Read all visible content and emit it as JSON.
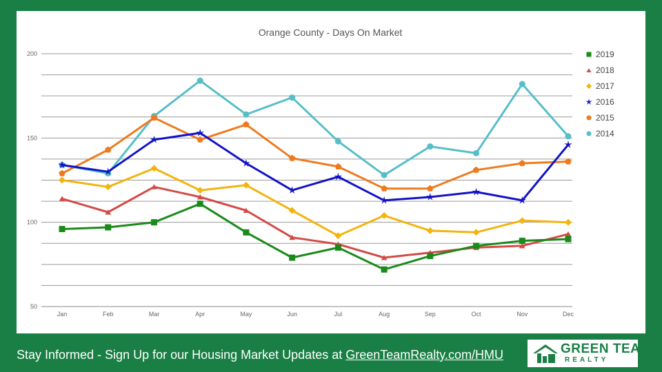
{
  "chart_data": {
    "type": "line",
    "title": "Orange County - Days On Market",
    "xlabel": "",
    "ylabel": "",
    "ylim": [
      50,
      200
    ],
    "y_ticks": [
      50,
      100,
      150,
      200
    ],
    "grid": true,
    "legend_position": "right",
    "categories": [
      "Jan",
      "Feb",
      "Mar",
      "Apr",
      "May",
      "Jun",
      "Jul",
      "Aug",
      "Sep",
      "Oct",
      "Nov",
      "Dec"
    ],
    "series": [
      {
        "name": "2019",
        "color": "#1a8a1a",
        "marker": "square",
        "values": [
          96,
          97,
          100,
          111,
          94,
          79,
          85,
          72,
          80,
          86,
          89,
          90
        ]
      },
      {
        "name": "2018",
        "color": "#d24b47",
        "marker": "triangle",
        "values": [
          114,
          106,
          121,
          115,
          107,
          91,
          87,
          79,
          82,
          85,
          86,
          93
        ]
      },
      {
        "name": "2017",
        "color": "#f2b40f",
        "marker": "diamond",
        "values": [
          125,
          121,
          132,
          119,
          122,
          107,
          92,
          104,
          95,
          94,
          101,
          100
        ]
      },
      {
        "name": "2016",
        "color": "#1212c8",
        "marker": "star",
        "values": [
          134,
          130,
          149,
          153,
          135,
          119,
          127,
          113,
          115,
          118,
          113,
          146
        ]
      },
      {
        "name": "2015",
        "color": "#ee7a1e",
        "marker": "pentagon",
        "values": [
          129,
          143,
          162,
          149,
          158,
          138,
          133,
          120,
          120,
          131,
          135,
          136
        ]
      },
      {
        "name": "2014",
        "color": "#56bec8",
        "marker": "circle",
        "values": [
          134,
          129,
          163,
          184,
          164,
          174,
          148,
          128,
          145,
          141,
          182,
          151
        ]
      }
    ]
  },
  "footer": {
    "text": "Stay Informed - Sign Up for our Housing Market Updates at ",
    "link": "GreenTeamRealty.com/HMU"
  },
  "logo": {
    "name": "GREEN TEAM",
    "sub": "REALTY"
  },
  "colors": {
    "background": "#1a7f45",
    "panel": "#ffffff"
  }
}
